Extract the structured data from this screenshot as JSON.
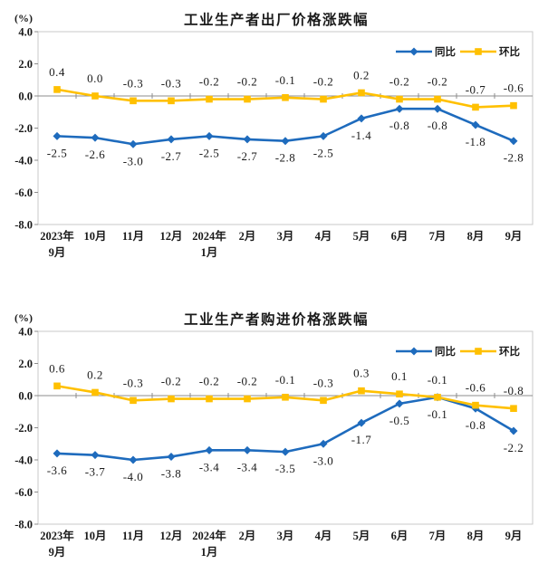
{
  "palette": {
    "blue": "#1e6bbd",
    "yellow": "#ffc000",
    "zero_axis_line": "#8c8c8c",
    "plot_border": "#c9c9c9",
    "text": "#1a1a1a",
    "background": "#ffffff"
  },
  "chart_data": [
    {
      "type": "line",
      "title": "工业生产者出厂价格涨跌幅",
      "unit_label": "(%)",
      "ylabel": "(%)",
      "ylim": [
        -8,
        4
      ],
      "yticks": [
        4.0,
        2.0,
        0.0,
        -2.0,
        -4.0,
        -6.0,
        -8.0
      ],
      "grid": "zero-line-only",
      "legend_position": "top-right-inside",
      "categories": [
        [
          "2023年",
          "9月"
        ],
        [
          "10月"
        ],
        [
          "11月"
        ],
        [
          "12月"
        ],
        [
          "2024年",
          "1月"
        ],
        [
          "2月"
        ],
        [
          "3月"
        ],
        [
          "4月"
        ],
        [
          "5月"
        ],
        [
          "6月"
        ],
        [
          "7月"
        ],
        [
          "8月"
        ],
        [
          "9月"
        ]
      ],
      "series": [
        {
          "key": "yoy",
          "name": "同比",
          "color": "#1e6bbd",
          "marker": "diamond",
          "label_side": "below",
          "values": [
            -2.5,
            -2.6,
            -3.0,
            -2.7,
            -2.5,
            -2.7,
            -2.8,
            -2.5,
            -1.4,
            -0.8,
            -0.8,
            -1.8,
            -2.8
          ]
        },
        {
          "key": "mom",
          "name": "环比",
          "color": "#ffc000",
          "marker": "square",
          "label_side": "above",
          "values": [
            0.4,
            0.0,
            -0.3,
            -0.3,
            -0.2,
            -0.2,
            -0.1,
            -0.2,
            0.2,
            -0.2,
            -0.2,
            -0.7,
            -0.6
          ]
        }
      ]
    },
    {
      "type": "line",
      "title": "工业生产者购进价格涨跌幅",
      "unit_label": "(%)",
      "ylabel": "(%)",
      "ylim": [
        -8,
        4
      ],
      "yticks": [
        4.0,
        2.0,
        0.0,
        -2.0,
        -4.0,
        -6.0,
        -8.0
      ],
      "grid": "zero-line-only",
      "legend_position": "top-right-inside",
      "categories": [
        [
          "2023年",
          "9月"
        ],
        [
          "10月"
        ],
        [
          "11月"
        ],
        [
          "12月"
        ],
        [
          "2024年",
          "1月"
        ],
        [
          "2月"
        ],
        [
          "3月"
        ],
        [
          "4月"
        ],
        [
          "5月"
        ],
        [
          "6月"
        ],
        [
          "7月"
        ],
        [
          "8月"
        ],
        [
          "9月"
        ]
      ],
      "series": [
        {
          "key": "yoy",
          "name": "同比",
          "color": "#1e6bbd",
          "marker": "diamond",
          "label_side": "below",
          "values": [
            -3.6,
            -3.7,
            -4.0,
            -3.8,
            -3.4,
            -3.4,
            -3.5,
            -3.0,
            -1.7,
            -0.5,
            -0.1,
            -0.8,
            -2.2
          ]
        },
        {
          "key": "mom",
          "name": "环比",
          "color": "#ffc000",
          "marker": "square",
          "label_side": "above",
          "values": [
            0.6,
            0.2,
            -0.3,
            -0.2,
            -0.2,
            -0.2,
            -0.1,
            -0.3,
            0.3,
            0.1,
            -0.1,
            -0.6,
            -0.8
          ]
        }
      ]
    }
  ]
}
